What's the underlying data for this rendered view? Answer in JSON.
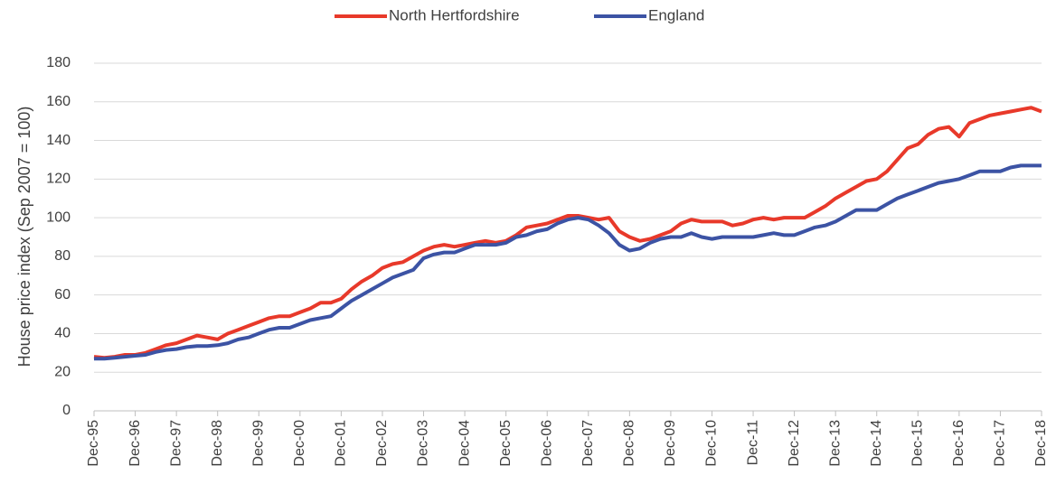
{
  "chart_data": {
    "type": "line",
    "y_label": "House price index (Sep 2007 = 100)",
    "categories": [
      "Dec-95",
      null,
      null,
      null,
      "Dec-96",
      null,
      null,
      null,
      "Dec-97",
      null,
      null,
      null,
      "Dec-98",
      null,
      null,
      null,
      "Dec-99",
      null,
      null,
      null,
      "Dec-00",
      null,
      null,
      null,
      "Dec-01",
      null,
      null,
      null,
      "Dec-02",
      null,
      null,
      null,
      "Dec-03",
      null,
      null,
      null,
      "Dec-04",
      null,
      null,
      null,
      "Dec-05",
      null,
      null,
      null,
      "Dec-06",
      null,
      null,
      null,
      "Dec-07",
      null,
      null,
      null,
      "Dec-08",
      null,
      null,
      null,
      "Dec-09",
      null,
      null,
      null,
      "Dec-10",
      null,
      null,
      null,
      "Dec-11",
      null,
      null,
      null,
      "Dec-12",
      null,
      null,
      null,
      "Dec-13",
      null,
      null,
      null,
      "Dec-14",
      null,
      null,
      null,
      "Dec-15",
      null,
      null,
      null,
      "Dec-16",
      null,
      null,
      null,
      "Dec-17",
      null,
      null,
      null,
      "Dec-18"
    ],
    "series": [
      {
        "name": "North Hertfordshire",
        "color": "#e8392a",
        "values": [
          28,
          27.5,
          28,
          29,
          29,
          30,
          32,
          34,
          35,
          37,
          39,
          38,
          37,
          40,
          42,
          44,
          46,
          48,
          49,
          49,
          51,
          53,
          56,
          56,
          58,
          63,
          67,
          70,
          74,
          76,
          77,
          80,
          83,
          85,
          86,
          85,
          86,
          87,
          88,
          87,
          88,
          91,
          95,
          96,
          97,
          99,
          101,
          101,
          100,
          99,
          100,
          93,
          90,
          88,
          89,
          91,
          93,
          97,
          99,
          98,
          98,
          98,
          96,
          97,
          99,
          100,
          99,
          100,
          100,
          100,
          103,
          106,
          110,
          113,
          116,
          119,
          120,
          124,
          130,
          136,
          138,
          143,
          146,
          147,
          142,
          149,
          151,
          153,
          154,
          155,
          156,
          157,
          155
        ]
      },
      {
        "name": "England",
        "color": "#3c53a4",
        "values": [
          27,
          27,
          27.5,
          28,
          28.5,
          29,
          30.5,
          31.5,
          32,
          33,
          33.5,
          33.5,
          34,
          35,
          37,
          38,
          40,
          42,
          43,
          43,
          45,
          47,
          48,
          49,
          53,
          57,
          60,
          63,
          66,
          69,
          71,
          73,
          79,
          81,
          82,
          82,
          84,
          86,
          86,
          86,
          87,
          90,
          91,
          93,
          94,
          97,
          99,
          100,
          99,
          96,
          92,
          86,
          83,
          84,
          87,
          89,
          90,
          90,
          92,
          90,
          89,
          90,
          90,
          90,
          90,
          91,
          92,
          91,
          91,
          93,
          95,
          96,
          98,
          101,
          104,
          104,
          104,
          107,
          110,
          112,
          114,
          116,
          118,
          119,
          120,
          122,
          124,
          124,
          124,
          126,
          127,
          127,
          127
        ]
      }
    ],
    "ylim": [
      0,
      180
    ],
    "yticks": [
      0,
      20,
      40,
      60,
      80,
      100,
      120,
      140,
      160,
      180
    ],
    "grid": true,
    "legend": "top"
  }
}
